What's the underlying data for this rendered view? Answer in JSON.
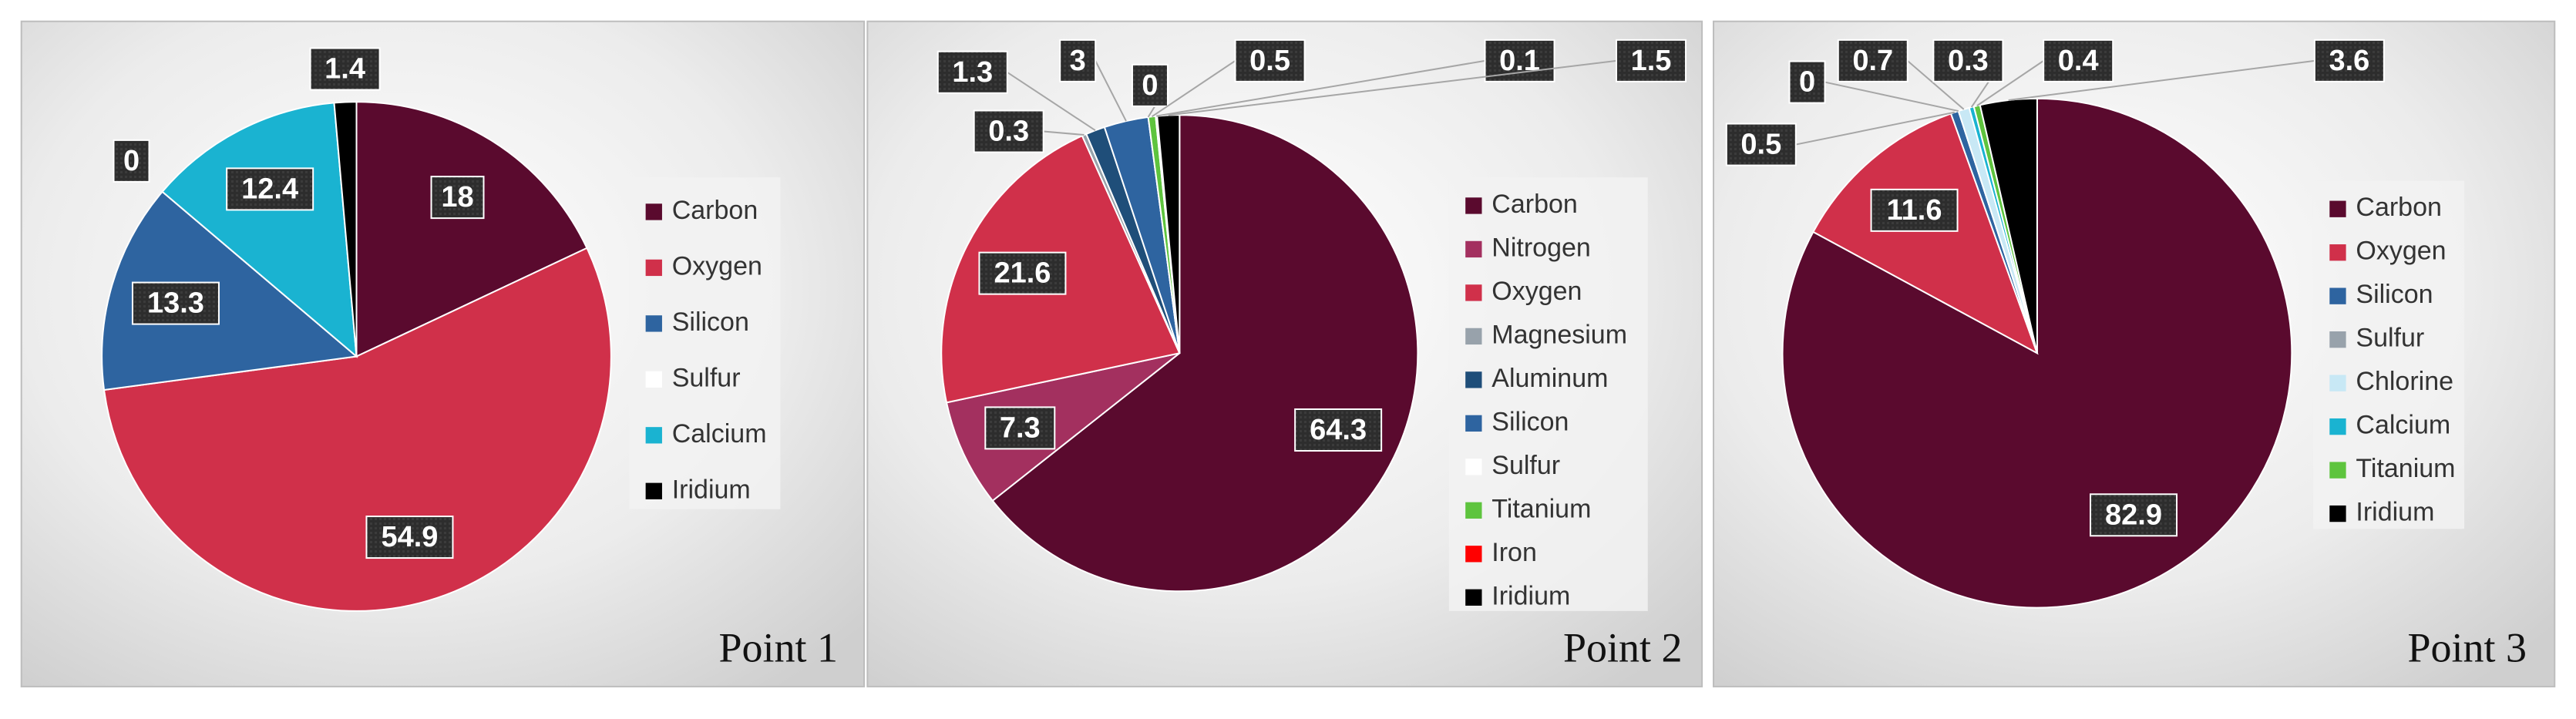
{
  "chart_data": [
    {
      "type": "pie",
      "title": "Point 1",
      "categories": [
        "Carbon",
        "Oxygen",
        "Silicon",
        "Sulfur",
        "Calcium",
        "Iridium"
      ],
      "values": [
        18,
        54.9,
        13.3,
        0,
        12.4,
        1.4
      ],
      "colors": [
        "#5a0a2e",
        "#d0304a",
        "#2e64a0",
        "#ffffff",
        "#1ab3d1",
        "#000000"
      ]
    },
    {
      "type": "pie",
      "title": "Point 2",
      "categories": [
        "Carbon",
        "Nitrogen",
        "Oxygen",
        "Magnesium",
        "Aluminum",
        "Silicon",
        "Sulfur",
        "Titanium",
        "Iron",
        "Iridium"
      ],
      "values": [
        64.3,
        7.3,
        21.6,
        0.3,
        1.3,
        3,
        0,
        0.5,
        0.1,
        1.5
      ],
      "colors": [
        "#5a0a2e",
        "#a3305f",
        "#d0304a",
        "#98a2ab",
        "#1f4e79",
        "#2e64a0",
        "#ffffff",
        "#5ec43e",
        "#ff0000",
        "#000000"
      ]
    },
    {
      "type": "pie",
      "title": "Point 3",
      "categories": [
        "Carbon",
        "Oxygen",
        "Silicon",
        "Sulfur",
        "Chlorine",
        "Calcium",
        "Titanium",
        "Iridium"
      ],
      "values": [
        82.9,
        11.6,
        0.5,
        0,
        0.7,
        0.3,
        0.4,
        3.6
      ],
      "colors": [
        "#5a0a2e",
        "#d0304a",
        "#2e64a0",
        "#98a2ab",
        "#c8e8f5",
        "#1ab3d1",
        "#5ec43e",
        "#000000"
      ]
    }
  ]
}
